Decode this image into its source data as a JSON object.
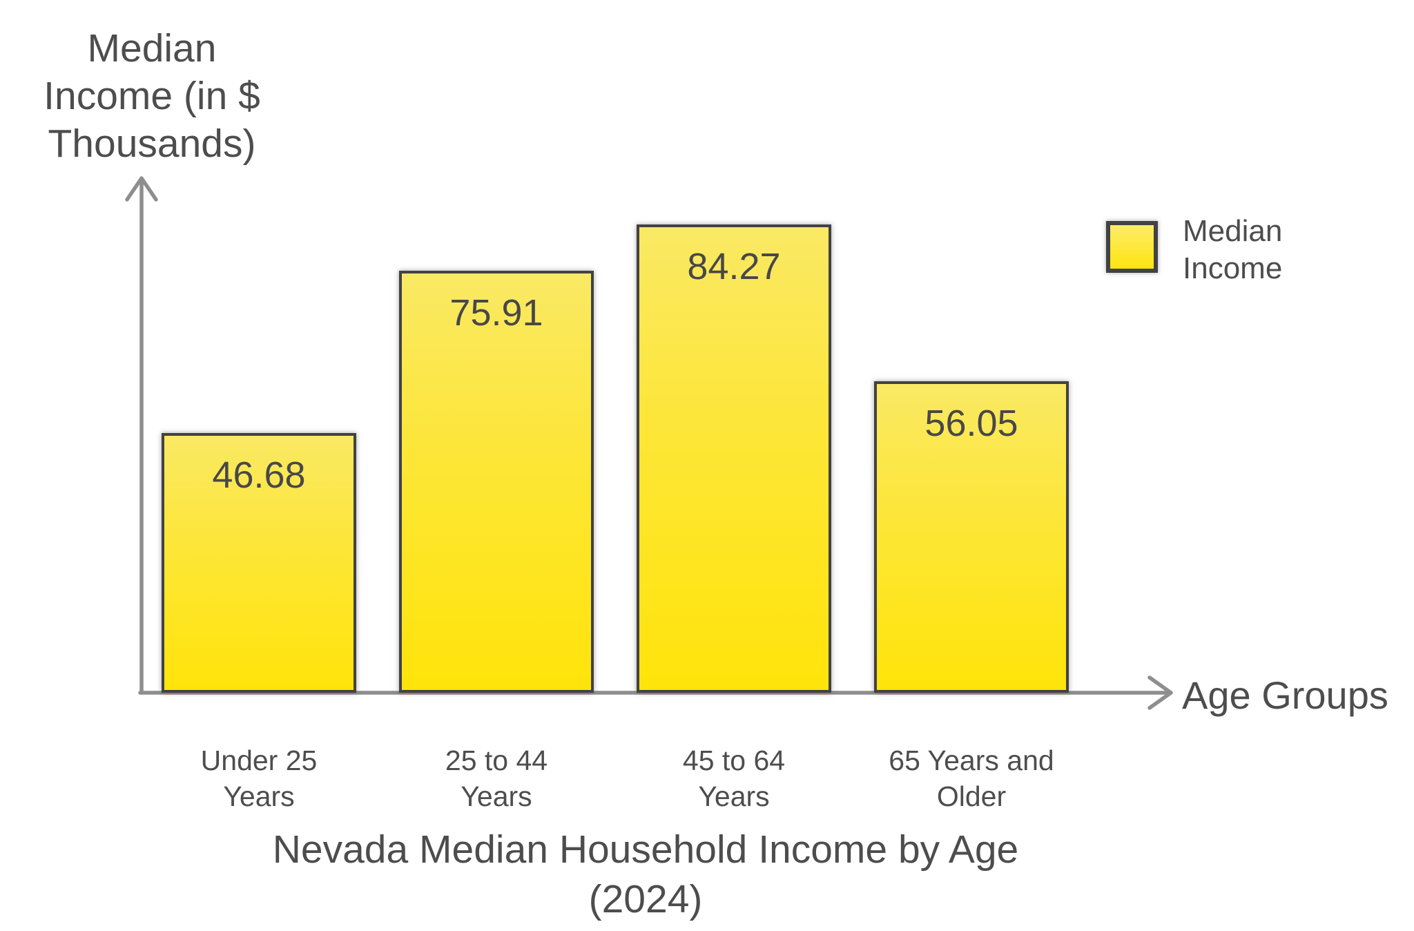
{
  "chart_data": {
    "type": "bar",
    "title": "Nevada Median Household Income by Age (2024)",
    "title_lines": [
      "Nevada Median Household Income by Age",
      "(2024)"
    ],
    "xlabel": "Age Groups",
    "ylabel": "Median Income (in $ Thousands)",
    "ylabel_lines": [
      "Median",
      "Income (in $",
      "Thousands)"
    ],
    "categories": [
      "Under 25 Years",
      "25 to 44 Years",
      "45 to 64 Years",
      "65 Years and Older"
    ],
    "category_lines": [
      [
        "Under 25",
        "Years"
      ],
      [
        "25 to 44",
        "Years"
      ],
      [
        "45 to 64",
        "Years"
      ],
      [
        "65 Years and",
        "Older"
      ]
    ],
    "values": [
      46.68,
      75.91,
      84.27,
      56.05
    ],
    "value_labels": [
      "46.68",
      "75.91",
      "84.27",
      "56.05"
    ],
    "series_name": "Median Income",
    "legend": {
      "position": "top-right",
      "entries": [
        {
          "label": "Median Income"
        }
      ]
    },
    "grid": false,
    "axes_arrows": true,
    "colors": {
      "bar_fill_top": "#fae964",
      "bar_fill_bottom": "#ffe40a",
      "bar_border": "#424242",
      "axis": "#8e8e8e",
      "text": "#4d4d4d",
      "background": "#ffffff"
    }
  }
}
